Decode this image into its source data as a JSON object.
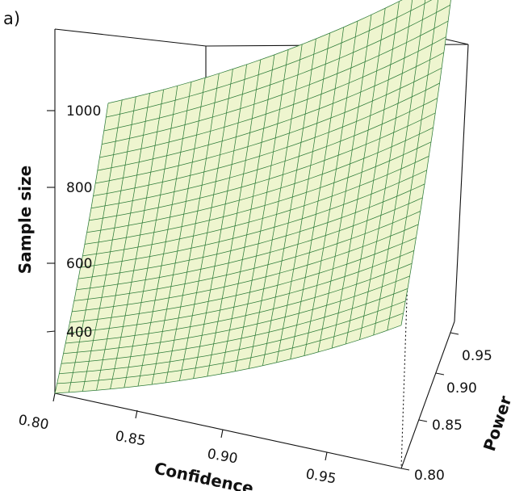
{
  "panel_label": "a)",
  "chart_data": {
    "type": "surface",
    "zlabel": "Sample size",
    "xlabel": "Confidence",
    "ylabel": "Power",
    "x_ticks": [
      "0.80",
      "0.85",
      "0.90",
      "0.95"
    ],
    "y_ticks": [
      "0.80",
      "0.85",
      "0.90",
      "0.95"
    ],
    "z_ticks": [
      "400",
      "600",
      "800",
      "1000"
    ],
    "xlim": [
      0.8,
      0.99
    ],
    "ylim": [
      0.8,
      0.99
    ],
    "zlim": [
      300,
      1150
    ],
    "surface_corners": [
      {
        "confidence": 0.8,
        "power": 0.8,
        "sample_size": 300
      },
      {
        "confidence": 0.8,
        "power": 0.99,
        "sample_size": 640
      },
      {
        "confidence": 0.99,
        "power": 0.8,
        "sample_size": 640
      },
      {
        "confidence": 0.99,
        "power": 0.99,
        "sample_size": 1130
      }
    ],
    "grid": false,
    "surface_color": "#eef5cf",
    "mesh_color": "#2f7d3a"
  }
}
